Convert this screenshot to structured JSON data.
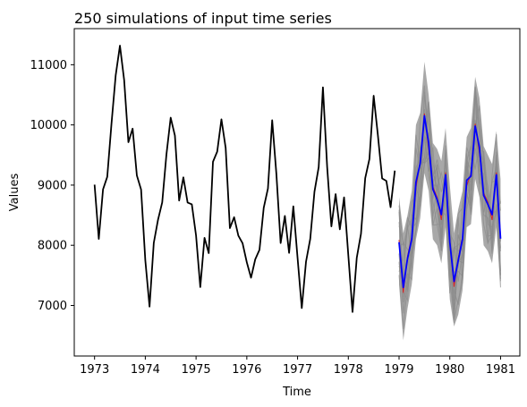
{
  "chart_data": {
    "type": "line",
    "title": "250 simulations of input time series",
    "xlabel": "Time",
    "ylabel": "Values",
    "xlim": [
      1972.6,
      1981.38
    ],
    "ylim": [
      6160,
      11600
    ],
    "x_ticks": [
      1973,
      1974,
      1975,
      1976,
      1977,
      1978,
      1979,
      1980,
      1981
    ],
    "x_tick_labels": [
      "1973",
      "1974",
      "1975",
      "1976",
      "1977",
      "1978",
      "1979",
      "1980",
      "1981"
    ],
    "y_ticks": [
      7000,
      8000,
      9000,
      10000,
      11000
    ],
    "y_tick_labels": [
      "7000",
      "8000",
      "9000",
      "10000",
      "11000"
    ],
    "grid": false,
    "colors": {
      "observed": "#000000",
      "simulations": "#999999",
      "simulation_mean": "#0000ff",
      "accent": "#d62728"
    },
    "observed": {
      "x_start": 1973.0,
      "step": 0.08333,
      "values": [
        9007,
        8106,
        8928,
        9137,
        10017,
        10826,
        11317,
        10744,
        9713,
        9938,
        9161,
        8927,
        7750,
        6981,
        8038,
        8422,
        8714,
        9512,
        10120,
        9823,
        8743,
        9129,
        8710,
        8680,
        8162,
        7306,
        8124,
        7870,
        9387,
        9556,
        10093,
        9620,
        8285,
        8466,
        8160,
        8034,
        7717,
        7461,
        7767,
        7925,
        8623,
        8945,
        10078,
        9179,
        8037,
        8488,
        7874,
        8647,
        7792,
        6957,
        7726,
        8106,
        8890,
        9299,
        10625,
        9302,
        8314,
        8850,
        8265,
        8796,
        7836,
        6892,
        7791,
        8192,
        9115,
        9434,
        10484,
        9827,
        9110,
        9070,
        8633,
        9240
      ]
    },
    "forecast_mean": {
      "x_start": 1979.0,
      "step": 0.08333,
      "values": [
        8050,
        7300,
        7780,
        8100,
        9050,
        9360,
        10150,
        9700,
        8930,
        8760,
        8510,
        9170,
        8050,
        7400,
        7750,
        8100,
        9080,
        9150,
        9980,
        9630,
        8830,
        8680,
        8510,
        9170,
        8110
      ]
    },
    "simulation_band": {
      "x_start": 1979.0,
      "step": 0.08333,
      "upper": [
        8800,
        8200,
        8500,
        8900,
        10000,
        10200,
        11050,
        10500,
        9700,
        9600,
        9400,
        9950,
        9000,
        8200,
        8600,
        8900,
        9800,
        9950,
        10800,
        10450,
        9650,
        9500,
        9350,
        9900,
        9100
      ],
      "lower": [
        7350,
        6420,
        6950,
        7350,
        8100,
        8450,
        9200,
        8900,
        8100,
        8000,
        7700,
        8300,
        7100,
        6650,
        6850,
        7250,
        8300,
        8350,
        9100,
        8800,
        8000,
        7900,
        7700,
        8300,
        7300
      ]
    },
    "n_simulations": 250
  }
}
